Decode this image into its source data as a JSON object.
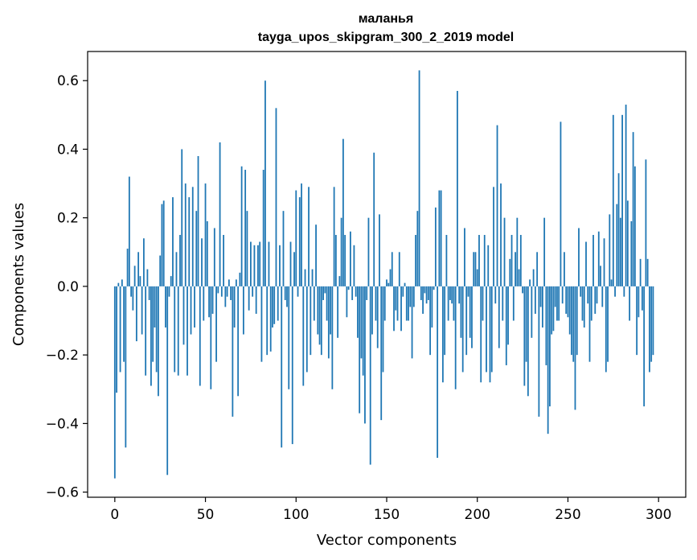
{
  "chart_data": {
    "type": "bar",
    "title": "маланья",
    "subtitle": "tayga_upos_skipgram_300_2_2019 model",
    "xlabel": "Vector components",
    "ylabel": "Components values",
    "xlim": [
      -15,
      315
    ],
    "ylim": [
      -0.615,
      0.685
    ],
    "xticks": [
      0,
      50,
      100,
      150,
      200,
      250,
      300
    ],
    "xtick_labels": [
      "0",
      "50",
      "100",
      "150",
      "200",
      "250",
      "300"
    ],
    "yticks": [
      -0.6,
      -0.4,
      -0.2,
      0.0,
      0.2,
      0.4,
      0.6
    ],
    "ytick_labels": [
      "−0.6",
      "−0.4",
      "−0.2",
      "0.0",
      "0.2",
      "0.4",
      "0.6"
    ],
    "bar_color": "#1f77b4",
    "grid": false,
    "x": "0..299",
    "values": [
      -0.56,
      -0.31,
      0.01,
      -0.25,
      0.02,
      -0.22,
      -0.47,
      0.11,
      0.32,
      -0.03,
      -0.07,
      0.06,
      -0.16,
      0.1,
      0.03,
      -0.14,
      0.14,
      -0.26,
      0.05,
      -0.04,
      -0.29,
      -0.22,
      -0.12,
      -0.25,
      -0.32,
      0.09,
      0.24,
      0.25,
      -0.12,
      -0.55,
      -0.03,
      0.03,
      0.26,
      -0.25,
      0.1,
      -0.26,
      0.15,
      0.4,
      -0.17,
      0.3,
      -0.26,
      0.26,
      -0.14,
      0.29,
      -0.12,
      0.22,
      0.38,
      -0.29,
      0.14,
      -0.1,
      0.3,
      0.19,
      -0.09,
      -0.3,
      -0.08,
      0.17,
      -0.22,
      -0.02,
      0.42,
      -0.03,
      0.15,
      -0.06,
      -0.03,
      0.02,
      -0.04,
      -0.38,
      -0.12,
      0.02,
      -0.32,
      0.04,
      0.35,
      -0.14,
      0.34,
      0.22,
      -0.07,
      0.13,
      -0.03,
      0.12,
      -0.08,
      0.12,
      0.13,
      -0.22,
      0.34,
      0.6,
      -0.2,
      0.13,
      -0.19,
      -0.12,
      -0.11,
      0.52,
      -0.1,
      0.12,
      -0.47,
      0.22,
      -0.04,
      -0.06,
      -0.3,
      0.13,
      -0.46,
      0.1,
      0.28,
      -0.03,
      0.26,
      0.3,
      -0.29,
      0.05,
      -0.25,
      0.29,
      -0.2,
      0.05,
      -0.1,
      0.18,
      -0.14,
      -0.17,
      -0.2,
      -0.04,
      -0.02,
      -0.1,
      -0.21,
      -0.14,
      -0.3,
      0.29,
      0.15,
      -0.15,
      0.03,
      0.2,
      0.43,
      0.15,
      -0.09,
      -0.01,
      0.16,
      -0.04,
      0.12,
      -0.03,
      -0.15,
      -0.37,
      -0.21,
      -0.26,
      -0.4,
      -0.04,
      0.2,
      -0.52,
      -0.14,
      0.39,
      -0.1,
      -0.18,
      0.21,
      -0.39,
      -0.25,
      -0.1,
      0.02,
      0.01,
      0.05,
      0.1,
      -0.13,
      -0.07,
      -0.1,
      0.1,
      -0.13,
      -0.03,
      0.01,
      -0.1,
      -0.1,
      -0.06,
      -0.21,
      -0.06,
      0.15,
      0.22,
      0.63,
      -0.04,
      -0.08,
      -0.02,
      -0.05,
      -0.04,
      -0.2,
      -0.12,
      -0.01,
      0.23,
      -0.5,
      0.28,
      0.28,
      -0.28,
      -0.2,
      0.15,
      -0.1,
      -0.04,
      -0.05,
      -0.1,
      -0.3,
      0.57,
      -0.05,
      -0.15,
      -0.25,
      0.17,
      -0.2,
      -0.03,
      -0.15,
      -0.18,
      0.1,
      0.1,
      0.05,
      0.15,
      -0.28,
      -0.1,
      0.15,
      -0.25,
      0.12,
      -0.28,
      -0.25,
      0.29,
      -0.05,
      0.47,
      -0.18,
      0.3,
      -0.1,
      0.2,
      -0.23,
      -0.17,
      0.08,
      0.15,
      -0.1,
      0.1,
      0.2,
      0.05,
      0.15,
      -0.02,
      -0.29,
      -0.22,
      -0.32,
      0.02,
      -0.15,
      0.05,
      -0.08,
      0.1,
      -0.38,
      -0.06,
      -0.12,
      0.2,
      -0.23,
      -0.43,
      -0.35,
      -0.14,
      -0.13,
      -0.06,
      -0.1,
      -0.1,
      0.48,
      -0.05,
      0.1,
      -0.08,
      -0.09,
      -0.14,
      -0.2,
      -0.22,
      -0.36,
      -0.2,
      0.17,
      -0.03,
      -0.1,
      -0.12,
      0.13,
      -0.05,
      -0.22,
      -0.1,
      0.15,
      -0.08,
      -0.05,
      0.16,
      0.06,
      -0.06,
      0.14,
      -0.25,
      -0.22,
      0.21,
      0.02,
      0.5,
      -0.03,
      0.24,
      0.33,
      0.2,
      0.5,
      -0.03,
      0.53,
      0.25,
      -0.1,
      0.19,
      0.45,
      0.35,
      -0.2,
      -0.09,
      0.08,
      -0.07,
      -0.35,
      0.37,
      0.08,
      -0.25,
      -0.22,
      -0.2
    ]
  }
}
